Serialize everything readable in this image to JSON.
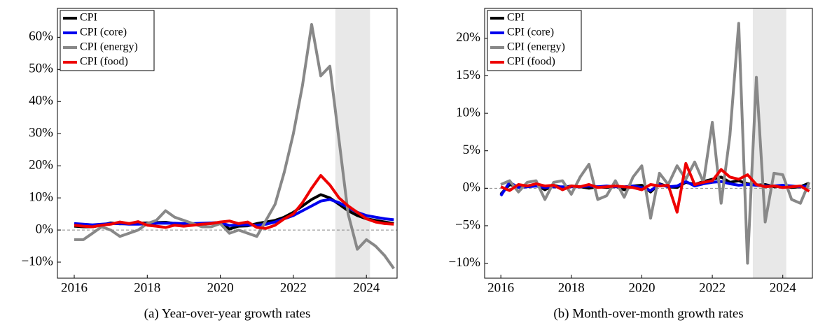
{
  "chart_data": [
    {
      "type": "line",
      "caption": "(a) Year-over-year growth rates",
      "x": [
        2016.0,
        2016.25,
        2016.5,
        2016.75,
        2017.0,
        2017.25,
        2017.5,
        2017.75,
        2018.0,
        2018.25,
        2018.5,
        2018.75,
        2019.0,
        2019.25,
        2019.5,
        2019.75,
        2020.0,
        2020.25,
        2020.5,
        2020.75,
        2021.0,
        2021.25,
        2021.5,
        2021.75,
        2022.0,
        2022.25,
        2022.5,
        2022.75,
        2023.0,
        2023.25,
        2023.5,
        2023.75,
        2024.0,
        2024.25,
        2024.5,
        2024.75
      ],
      "series": [
        {
          "name": "CPI",
          "color": "#000000",
          "values": [
            1.2,
            1.0,
            1.0,
            1.5,
            2.2,
            1.9,
            2.0,
            2.1,
            2.2,
            2.3,
            2.4,
            2.0,
            1.5,
            1.8,
            1.7,
            2.2,
            2.3,
            0.3,
            1.2,
            1.3,
            2.0,
            2.5,
            3.0,
            4.0,
            5.5,
            7.5,
            9.5,
            11.0,
            10.0,
            8.0,
            6.0,
            4.5,
            3.5,
            3.0,
            2.5,
            2.0
          ]
        },
        {
          "name": "CPI (core)",
          "color": "#0000ee",
          "values": [
            2.0,
            1.8,
            1.6,
            1.8,
            2.0,
            2.0,
            1.8,
            1.8,
            1.9,
            2.1,
            2.1,
            2.1,
            2.0,
            2.0,
            2.1,
            2.2,
            2.3,
            1.4,
            1.6,
            1.6,
            1.5,
            1.8,
            2.5,
            3.5,
            4.5,
            6.0,
            7.5,
            9.0,
            9.5,
            8.5,
            7.0,
            5.5,
            4.5,
            4.0,
            3.5,
            3.2
          ]
        },
        {
          "name": "CPI (energy)",
          "color": "#888888",
          "values": [
            -3,
            -3,
            -1,
            1,
            0,
            -2,
            -1,
            0,
            2,
            3,
            6,
            4,
            3,
            2,
            1,
            1,
            2,
            -1,
            0,
            -1,
            -2,
            3,
            8,
            18,
            30,
            45,
            64,
            48,
            51,
            28,
            5,
            -6,
            -3,
            -5,
            -8,
            -12
          ]
        },
        {
          "name": "CPI (food)",
          "color": "#ee0000",
          "values": [
            1.5,
            1.2,
            1.0,
            1.5,
            1.8,
            2.5,
            2.0,
            2.6,
            1.5,
            1.2,
            0.8,
            1.5,
            1.2,
            1.5,
            1.8,
            2.0,
            2.5,
            2.8,
            2.0,
            2.5,
            0.8,
            0.5,
            1.5,
            3.5,
            5.0,
            8.5,
            13.0,
            17.0,
            14.0,
            10.0,
            7.5,
            5.5,
            3.5,
            2.5,
            2.0,
            1.8
          ]
        }
      ],
      "xlim": [
        2015.54,
        2024.84
      ],
      "xticks": [
        2016,
        2018,
        2020,
        2022,
        2024
      ],
      "ylim": [
        -15,
        69
      ],
      "yticks": [
        {
          "value": -10,
          "label": "−10%"
        },
        {
          "value": 0,
          "label": "0%"
        },
        {
          "value": 10,
          "label": "10%"
        },
        {
          "value": 20,
          "label": "20%"
        },
        {
          "value": 30,
          "label": "30%"
        },
        {
          "value": 40,
          "label": "40%"
        },
        {
          "value": 50,
          "label": "50%"
        },
        {
          "value": 60,
          "label": "60%"
        }
      ],
      "shaded_region": [
        2023.15,
        2024.1
      ],
      "legend": "upper left"
    },
    {
      "type": "line",
      "caption": "(b) Month-over-month growth rates",
      "x": [
        2016.0,
        2016.25,
        2016.5,
        2016.75,
        2017.0,
        2017.25,
        2017.5,
        2017.75,
        2018.0,
        2018.25,
        2018.5,
        2018.75,
        2019.0,
        2019.25,
        2019.5,
        2019.75,
        2020.0,
        2020.25,
        2020.5,
        2020.75,
        2021.0,
        2021.25,
        2021.5,
        2021.75,
        2022.0,
        2022.25,
        2022.5,
        2022.75,
        2023.0,
        2023.25,
        2023.5,
        2023.75,
        2024.0,
        2024.25,
        2024.5,
        2024.75
      ],
      "series": [
        {
          "name": "CPI",
          "color": "#000000",
          "values": [
            -0.8,
            0.5,
            0.2,
            0.3,
            0.5,
            -0.2,
            0.4,
            0.1,
            0.3,
            0.2,
            0.0,
            0.2,
            0.1,
            0.3,
            -0.2,
            0.3,
            0.4,
            -0.5,
            0.6,
            0.2,
            0.1,
            0.8,
            0.5,
            0.9,
            1.2,
            1.5,
            0.8,
            1.0,
            0.6,
            0.4,
            0.5,
            0.2,
            0.3,
            0.1,
            0.2,
            0.7
          ]
        },
        {
          "name": "CPI (core)",
          "color": "#0000ee",
          "values": [
            -1.0,
            0.8,
            0.1,
            0.2,
            0.3,
            0.1,
            0.2,
            0.2,
            0.2,
            0.2,
            0.3,
            0.2,
            0.3,
            0.2,
            0.2,
            0.3,
            0.1,
            -0.3,
            0.5,
            0.2,
            0.3,
            0.9,
            0.3,
            0.6,
            0.8,
            0.9,
            0.6,
            0.4,
            0.5,
            0.4,
            0.3,
            0.3,
            0.4,
            0.3,
            0.2,
            0.3
          ]
        },
        {
          "name": "CPI (energy)",
          "color": "#888888",
          "values": [
            0.5,
            1.0,
            -0.5,
            0.8,
            1.0,
            -1.5,
            0.8,
            1.0,
            -0.8,
            1.5,
            3.2,
            -1.5,
            -1.0,
            1.0,
            -1.2,
            1.5,
            3.0,
            -4.0,
            2.0,
            0.5,
            3.0,
            1.2,
            3.5,
            0.8,
            8.8,
            -2.0,
            7.0,
            22.0,
            -10.0,
            14.8,
            -4.5,
            2.0,
            1.8,
            -1.5,
            -2.0,
            0.8
          ]
        },
        {
          "name": "CPI (food)",
          "color": "#ee0000",
          "values": [
            0.2,
            -0.3,
            0.5,
            0.3,
            0.6,
            0.3,
            0.4,
            -0.2,
            0.3,
            0.2,
            0.5,
            0.1,
            0.2,
            0.3,
            0.2,
            0.1,
            -0.2,
            0.5,
            0.3,
            0.4,
            -3.2,
            3.3,
            0.5,
            0.8,
            1.0,
            2.5,
            1.5,
            1.2,
            1.8,
            0.5,
            0.2,
            0.3,
            0.1,
            0.2,
            0.3,
            -0.4
          ]
        }
      ],
      "xlim": [
        2015.54,
        2024.84
      ],
      "xticks": [
        2016,
        2018,
        2020,
        2022,
        2024
      ],
      "ylim": [
        -12,
        24
      ],
      "yticks": [
        {
          "value": -10,
          "label": "−10%"
        },
        {
          "value": -5,
          "label": "−5%"
        },
        {
          "value": 0,
          "label": "0%"
        },
        {
          "value": 5,
          "label": "5%"
        },
        {
          "value": 10,
          "label": "10%"
        },
        {
          "value": 15,
          "label": "15%"
        },
        {
          "value": 20,
          "label": "20%"
        }
      ],
      "shaded_region": [
        2023.15,
        2024.1
      ],
      "legend": "upper left"
    }
  ]
}
